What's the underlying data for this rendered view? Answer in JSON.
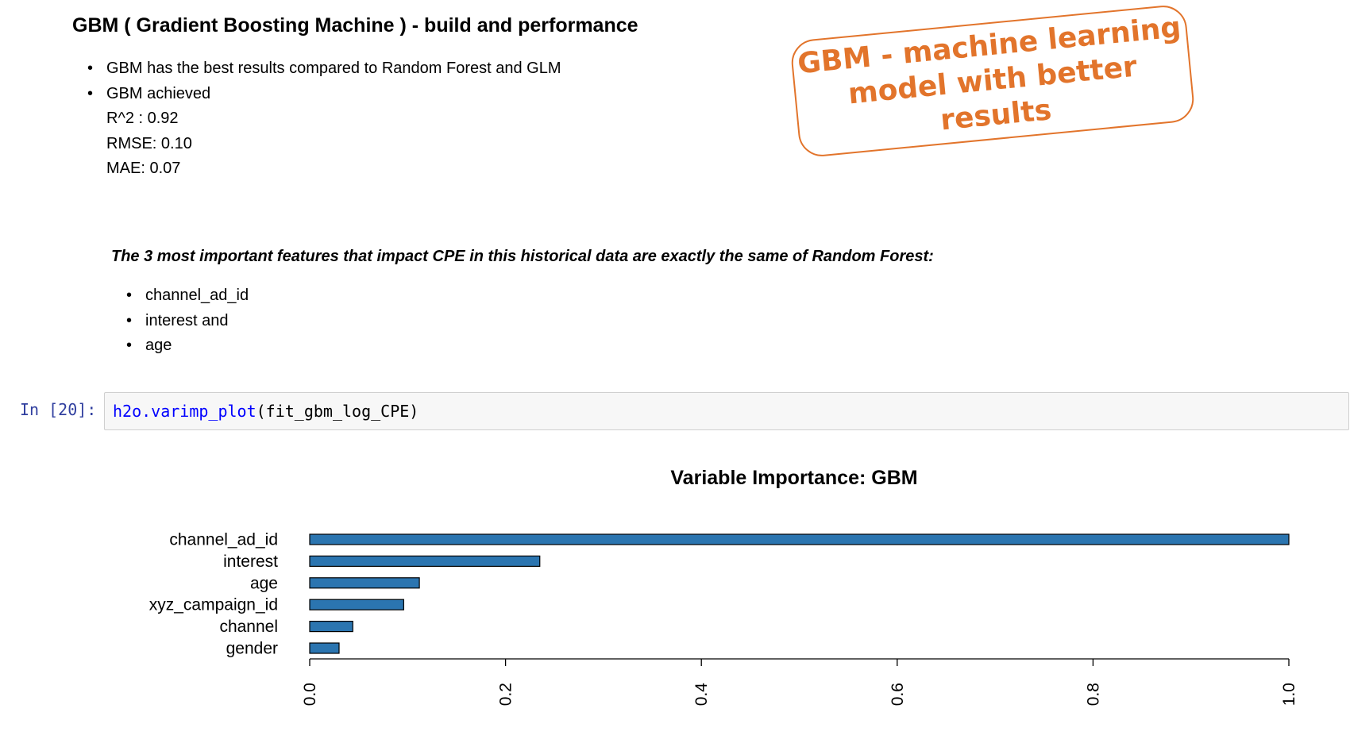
{
  "markdown": {
    "heading": "GBM ( Gradient Boosting Machine ) - build and performance",
    "bullets": [
      "GBM has the best results compared to Random Forest and GLM",
      "GBM achieved"
    ],
    "metrics": [
      "R^2 : 0.92",
      "RMSE: 0.10",
      "MAE: 0.07"
    ],
    "features_title": "The 3 most important features that impact CPE in this historical data are exactly the same of Random Forest:",
    "features": [
      "channel_ad_id",
      "interest and",
      "age"
    ]
  },
  "callout": {
    "line1": "GBM - machine learning",
    "line2": "model with better results",
    "color": "#e2742b"
  },
  "code_cell": {
    "prompt": "In [20]:",
    "function": "h2o.varimp_plot",
    "args": "(fit_gbm_log_CPE)"
  },
  "chart_data": {
    "type": "bar",
    "orientation": "horizontal",
    "title": "Variable Importance: GBM",
    "categories": [
      "channel_ad_id",
      "interest",
      "age",
      "xyz_campaign_id",
      "channel",
      "gender"
    ],
    "values": [
      1.0,
      0.235,
      0.112,
      0.096,
      0.044,
      0.03
    ],
    "xlim": [
      0,
      1.0
    ],
    "xticks": [
      "0.0",
      "0.2",
      "0.4",
      "0.6",
      "0.8",
      "1.0"
    ],
    "bar_color": "#2b75b0",
    "grid": false
  }
}
